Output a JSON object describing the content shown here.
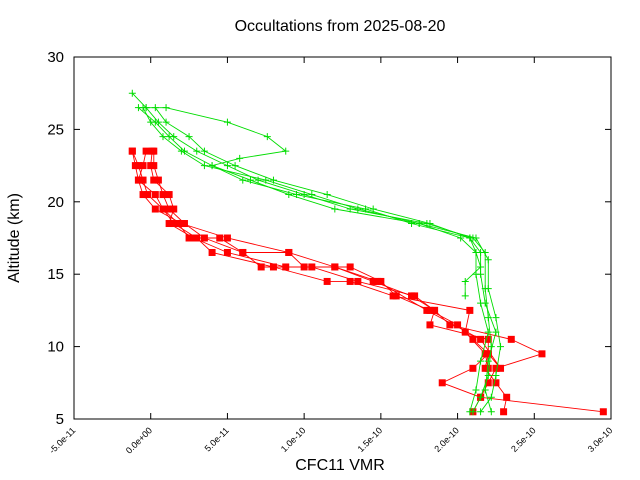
{
  "chart_data": {
    "type": "line",
    "title": "Occultations from 2025-08-20",
    "xlabel": "CFC11 VMR",
    "ylabel": "Altitude (km)",
    "xlim": [
      -5e-11,
      3e-10
    ],
    "ylim": [
      5,
      30
    ],
    "xticks": [
      {
        "value": -5e-11,
        "label": "-5.0e-11"
      },
      {
        "value": 0,
        "label": "0.0e+00"
      },
      {
        "value": 5e-11,
        "label": "5.0e-11"
      },
      {
        "value": 1e-10,
        "label": "1.0e-10"
      },
      {
        "value": 1.5e-10,
        "label": "1.5e-10"
      },
      {
        "value": 2e-10,
        "label": "2.0e-10"
      },
      {
        "value": 2.5e-10,
        "label": "2.5e-10"
      },
      {
        "value": 3e-10,
        "label": "3.0e-10"
      }
    ],
    "yticks": [
      {
        "value": 5,
        "label": "5"
      },
      {
        "value": 10,
        "label": "10"
      },
      {
        "value": 15,
        "label": "15"
      },
      {
        "value": 20,
        "label": "20"
      },
      {
        "value": 25,
        "label": "25"
      },
      {
        "value": 30,
        "label": "30"
      }
    ],
    "grid": false,
    "legend": "none",
    "colors": {
      "red_series": "#ff0000",
      "green_series": "#00dd00"
    },
    "series": [
      {
        "color": "#ff0000",
        "marker": "square",
        "points": [
          [
            2.3e-10,
            5.5
          ],
          [
            2.32e-10,
            6.5
          ],
          [
            2.25e-10,
            7.5
          ],
          [
            2.18e-10,
            8.5
          ],
          [
            2.2e-10,
            9.5
          ],
          [
            2.1e-10,
            10.5
          ],
          [
            2e-10,
            11.5
          ],
          [
            1.82e-10,
            12.5
          ],
          [
            1.6e-10,
            13.5
          ],
          [
            1.5e-10,
            14.5
          ],
          [
            1.3e-10,
            15.5
          ],
          [
            1e-10,
            15.5
          ],
          [
            9e-11,
            16.5
          ],
          [
            6e-11,
            16.5
          ],
          [
            3.5e-11,
            17.5
          ],
          [
            2.2e-11,
            18.5
          ],
          [
            1.2e-11,
            19.5
          ],
          [
            8e-12,
            20.5
          ],
          [
            5e-12,
            21.5
          ],
          [
            2e-12,
            22.5
          ],
          [
            2e-12,
            23.5
          ]
        ]
      },
      {
        "color": "#ff0000",
        "marker": "square",
        "points": [
          [
            2.95e-10,
            5.5
          ],
          [
            2.15e-10,
            6.5
          ],
          [
            2.2e-10,
            7.5
          ],
          [
            2.25e-10,
            8.5
          ],
          [
            2.55e-10,
            9.5
          ],
          [
            2.35e-10,
            10.5
          ],
          [
            1.95e-10,
            11.5
          ],
          [
            1.85e-10,
            12.5
          ],
          [
            1.7e-10,
            13.5
          ],
          [
            1.45e-10,
            14.5
          ],
          [
            1.2e-10,
            15.5
          ],
          [
            9e-11,
            16.5
          ],
          [
            5e-11,
            17.5
          ],
          [
            2e-11,
            18.5
          ],
          [
            3e-12,
            19.5
          ],
          [
            -5e-12,
            20.5
          ],
          [
            -8e-12,
            21.5
          ],
          [
            -1e-11,
            22.5
          ],
          [
            -1.2e-11,
            23.5
          ]
        ]
      },
      {
        "color": "#ff0000",
        "marker": "square",
        "points": [
          [
            2.1e-10,
            5.5
          ],
          [
            2.15e-10,
            6.5
          ],
          [
            1.9e-10,
            7.5
          ],
          [
            2.1e-10,
            8.5
          ],
          [
            2.2e-10,
            9.5
          ],
          [
            2.2e-10,
            10.5
          ],
          [
            1.82e-10,
            11.5
          ],
          [
            1.85e-10,
            12.5
          ],
          [
            1.72e-10,
            13.5
          ],
          [
            1.35e-10,
            14.5
          ],
          [
            1.05e-10,
            15.5
          ],
          [
            7.2e-11,
            15.5
          ],
          [
            6e-11,
            16.5
          ],
          [
            4.5e-11,
            17.5
          ],
          [
            2.5e-11,
            17.5
          ],
          [
            1.8e-11,
            18.5
          ],
          [
            8e-12,
            19.5
          ],
          [
            3e-12,
            20.5
          ],
          [
            -8e-12,
            21.5
          ],
          [
            -5e-12,
            22.5
          ],
          [
            -3e-12,
            23.5
          ]
        ]
      },
      {
        "color": "#ff0000",
        "marker": "square",
        "points": [
          [
            2.2e-10,
            8.5
          ],
          [
            2.18e-10,
            9.5
          ],
          [
            2.05e-10,
            11
          ],
          [
            2.08e-10,
            12.5
          ],
          [
            1.58e-10,
            13.5
          ],
          [
            1.3e-10,
            14.5
          ],
          [
            1.15e-10,
            14.5
          ],
          [
            8e-11,
            15.5
          ],
          [
            4e-11,
            16.5
          ],
          [
            3e-11,
            17.5
          ],
          [
            1.5e-11,
            18.5
          ],
          [
            8e-12,
            19.5
          ],
          [
            -2e-12,
            20.5
          ],
          [
            -5e-12,
            21.5
          ],
          [
            -8e-12,
            22.5
          ],
          [
            -1.2e-11,
            23.5
          ]
        ]
      },
      {
        "color": "#ff0000",
        "marker": "square",
        "points": [
          [
            2.2e-10,
            9.5
          ],
          [
            2.28e-10,
            8.5
          ],
          [
            2.15e-10,
            10.5
          ],
          [
            1.8e-10,
            12.5
          ],
          [
            1.48e-10,
            14.5
          ],
          [
            1.2e-10,
            15.5
          ],
          [
            8.8e-11,
            15.5
          ],
          [
            5e-11,
            16.5
          ],
          [
            2.8e-11,
            17.5
          ],
          [
            1.2e-11,
            18.5
          ],
          [
            1.5e-11,
            19.5
          ],
          [
            1.2e-11,
            20.5
          ],
          [
            2e-12,
            21.5
          ],
          [
            0,
            22.5
          ],
          [
            1e-12,
            23.5
          ]
        ]
      },
      {
        "color": "#00dd00",
        "marker": "plus",
        "points": [
          [
            2.1e-10,
            5.5
          ],
          [
            2.15e-10,
            6.5
          ],
          [
            2.2e-10,
            8
          ],
          [
            2.22e-10,
            10
          ],
          [
            2.2e-10,
            12
          ],
          [
            2.18e-10,
            14
          ],
          [
            2.18e-10,
            16.5
          ],
          [
            2.1e-10,
            17.5
          ],
          [
            1.8e-10,
            18.5
          ],
          [
            1.3e-10,
            19.5
          ],
          [
            1e-10,
            20.5
          ],
          [
            7e-11,
            21.5
          ],
          [
            5e-11,
            22.5
          ],
          [
            3e-11,
            23.5
          ],
          [
            1.5e-11,
            24.5
          ],
          [
            5e-12,
            25.5
          ],
          [
            -3e-12,
            26.5
          ],
          [
            -1.2e-11,
            27.5
          ]
        ]
      },
      {
        "color": "#00dd00",
        "marker": "plus",
        "points": [
          [
            2.15e-10,
            5.5
          ],
          [
            2.22e-10,
            6.5
          ],
          [
            2.25e-10,
            8
          ],
          [
            2.28e-10,
            10
          ],
          [
            2.25e-10,
            12
          ],
          [
            2.2e-10,
            14
          ],
          [
            2.2e-10,
            16
          ],
          [
            2.12e-10,
            17.5
          ],
          [
            1.75e-10,
            18.5
          ],
          [
            1.35e-10,
            19.5
          ],
          [
            1.05e-10,
            20.5
          ],
          [
            7.5e-11,
            21.5
          ],
          [
            3.5e-11,
            22.5
          ],
          [
            2e-11,
            23.5
          ],
          [
            8e-12,
            24.5
          ],
          [
            0,
            25.5
          ],
          [
            -5e-12,
            26.5
          ]
        ]
      },
      {
        "color": "#00dd00",
        "marker": "plus",
        "points": [
          [
            2.08e-10,
            5.5
          ],
          [
            2.12e-10,
            7
          ],
          [
            2.15e-10,
            9
          ],
          [
            2.2e-10,
            11
          ],
          [
            2.15e-10,
            13
          ],
          [
            2.12e-10,
            15
          ],
          [
            2.12e-10,
            16.5
          ],
          [
            2.08e-10,
            17.5
          ],
          [
            1.82e-10,
            18.5
          ],
          [
            1.45e-10,
            19.5
          ],
          [
            1.15e-10,
            20.5
          ],
          [
            8e-11,
            21.5
          ],
          [
            5.5e-11,
            22.5
          ],
          [
            3.5e-11,
            23.5
          ],
          [
            2.5e-11,
            24.5
          ],
          [
            1e-11,
            25.5
          ],
          [
            3e-12,
            26.5
          ]
        ]
      },
      {
        "color": "#00dd00",
        "marker": "plus",
        "points": [
          [
            2.22e-10,
            5.5
          ],
          [
            2.18e-10,
            7
          ],
          [
            2.2e-10,
            9
          ],
          [
            2.25e-10,
            11
          ],
          [
            2.18e-10,
            13
          ],
          [
            2.15e-10,
            15
          ],
          [
            2.15e-10,
            16.5
          ],
          [
            2.08e-10,
            17.5
          ],
          [
            1.7e-10,
            18.5
          ],
          [
            1.4e-10,
            19.5
          ],
          [
            9.5e-11,
            20.5
          ],
          [
            6e-11,
            21.5
          ],
          [
            4e-11,
            22.5
          ],
          [
            5.8e-11,
            23
          ],
          [
            8.8e-11,
            23.5
          ],
          [
            7.6e-11,
            24.5
          ],
          [
            5e-11,
            25.5
          ],
          [
            1e-11,
            26.5
          ],
          [
            -3e-12,
            26.5
          ]
        ]
      },
      {
        "color": "#00dd00",
        "marker": "plus",
        "points": [
          [
            2.05e-10,
            13.5
          ],
          [
            2.05e-10,
            14.5
          ],
          [
            2.15e-10,
            15.5
          ],
          [
            2.12e-10,
            16.5
          ],
          [
            2.02e-10,
            17.5
          ],
          [
            1.75e-10,
            18.5
          ],
          [
            1.2e-10,
            19.5
          ],
          [
            9e-11,
            20.5
          ],
          [
            6.5e-11,
            21.5
          ],
          [
            4e-11,
            22.5
          ],
          [
            2.2e-11,
            23.5
          ],
          [
            1.2e-11,
            24.5
          ],
          [
            3e-12,
            25.5
          ],
          [
            -8e-12,
            26.5
          ]
        ]
      }
    ]
  }
}
